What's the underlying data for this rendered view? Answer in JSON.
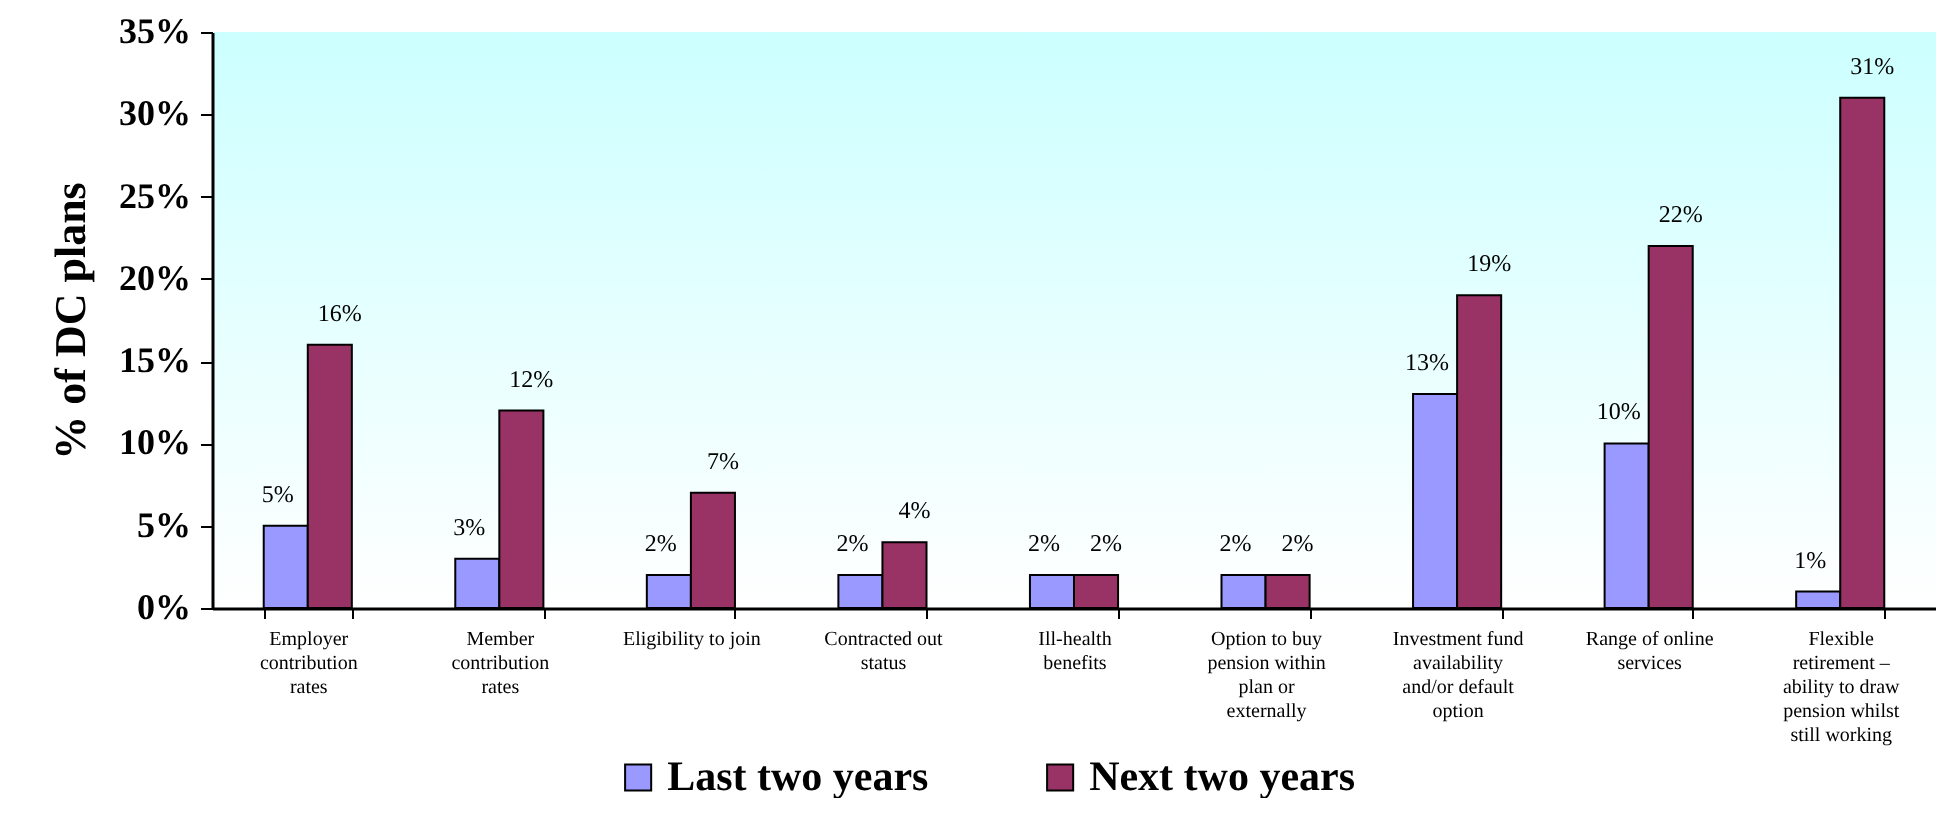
{
  "chart_data": {
    "type": "bar",
    "ylabel": "% of DC plans",
    "categories": [
      "Employer contribution rates",
      "Member contribution rates",
      "Eligibility to join",
      "Contracted out status",
      "Ill-health benefits",
      "Option to buy pension within plan or externally",
      "Investment fund availability and/or default option",
      "Range of online services",
      "Flexible retirement – ability to draw pension whilst still working"
    ],
    "series": [
      {
        "name": "Last two years",
        "color": "#9999ff",
        "values": [
          5,
          3,
          2,
          2,
          2,
          2,
          13,
          10,
          1
        ],
        "value_labels": [
          "5%",
          "3%",
          "2%",
          "2%",
          "2%",
          "2%",
          "13%",
          "10%",
          "1%"
        ]
      },
      {
        "name": "Next two years",
        "color": "#993366",
        "values": [
          16,
          12,
          7,
          4,
          2,
          2,
          19,
          22,
          31
        ],
        "value_labels": [
          "16%",
          "12%",
          "7%",
          "4%",
          "2%",
          "2%",
          "19%",
          "22%",
          "31%"
        ]
      }
    ],
    "ylim": [
      0,
      35
    ],
    "yticks": [
      {
        "value": 0,
        "label": "0%"
      },
      {
        "value": 5,
        "label": "5%"
      },
      {
        "value": 10,
        "label": "10%"
      },
      {
        "value": 15,
        "label": "15%"
      },
      {
        "value": 20,
        "label": "20%"
      },
      {
        "value": 25,
        "label": "25%"
      },
      {
        "value": 30,
        "label": "30%"
      },
      {
        "value": 35,
        "label": "35%"
      }
    ],
    "legend": "bottom"
  }
}
